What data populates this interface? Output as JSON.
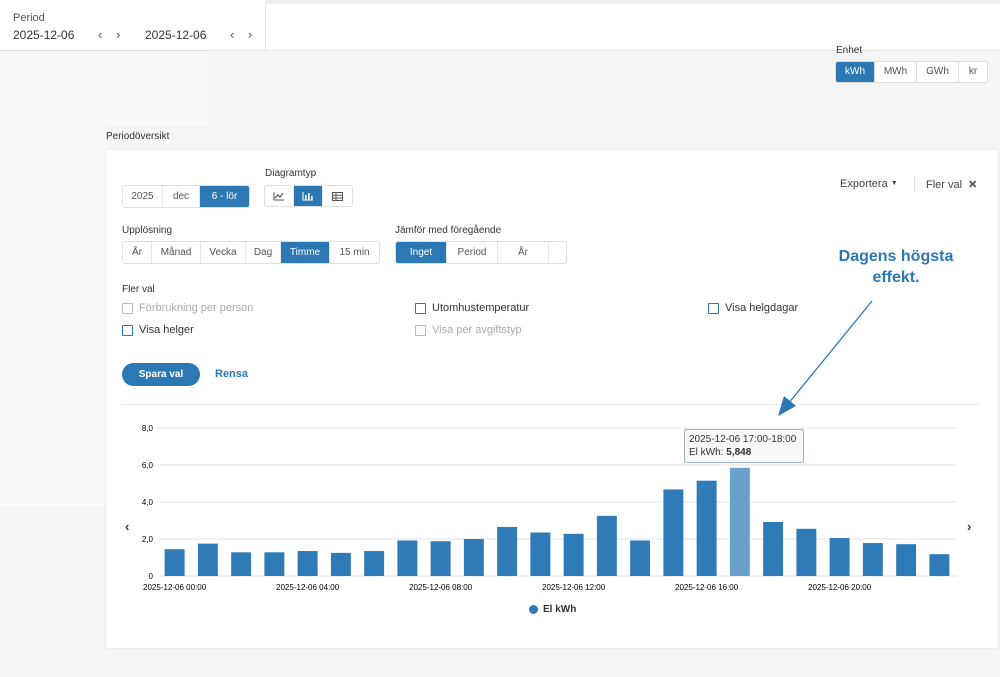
{
  "period": {
    "label": "Period",
    "start_date": "2025-12-06",
    "end_date": "2025-12-06"
  },
  "unit": {
    "label": "Enhet",
    "options": [
      "kWh",
      "MWh",
      "GWh",
      "kr"
    ],
    "selected": "kWh"
  },
  "section_title": "Periodöversikt",
  "date_picker": {
    "year": "2025",
    "month": "dec",
    "day": "6 - lör"
  },
  "diagram": {
    "label": "Diagramtyp",
    "options": [
      "line-chart-icon",
      "bar-chart-icon",
      "table-icon"
    ],
    "selected": "bar-chart-icon"
  },
  "toolbar": {
    "export_label": "Exportera",
    "more_label": "Fler val"
  },
  "resolution": {
    "label": "Upplösning",
    "options": [
      "År",
      "Månad",
      "Vecka",
      "Dag",
      "Timme",
      "15 min"
    ],
    "selected": "Timme"
  },
  "compare": {
    "label": "Jämför med föregående",
    "options": [
      "Inget",
      "Period",
      "År",
      ""
    ],
    "selected": "Inget"
  },
  "more_options": {
    "label": "Fler val",
    "checkboxes": [
      {
        "label": "Förbrukning per person",
        "checked": false,
        "disabled": true
      },
      {
        "label": "Utomhustemperatur",
        "checked": false,
        "disabled": false
      },
      {
        "label": "Visa helgdagar",
        "checked": false,
        "disabled": false
      },
      {
        "label": "Visa helger",
        "checked": false,
        "disabled": false
      },
      {
        "label": "Visa per avgiftstyp",
        "checked": false,
        "disabled": true
      }
    ]
  },
  "actions": {
    "save_label": "Spara val",
    "clear_label": "Rensa"
  },
  "annotation": {
    "line1": "Dagens högsta",
    "line2": "effekt."
  },
  "tooltip": {
    "time": "2025-12-06 17:00-18:00",
    "series_label": "El kWh:",
    "value": "5,848"
  },
  "colors": {
    "accent": "#2b78b5",
    "bar": "#2f7bb8",
    "bar_highlight": "#6aa1cc"
  },
  "chart_data": {
    "type": "bar",
    "ylim": [
      0,
      8
    ],
    "y_ticks": [
      "0",
      "2,0",
      "4,0",
      "6,0",
      "8,0"
    ],
    "x_tick_labels": [
      "2025-12-06 00:00",
      "2025-12-06 04:00",
      "2025-12-06 08:00",
      "2025-12-06 12:00",
      "2025-12-06 16:00",
      "2025-12-06 20:00"
    ],
    "x_tick_hours": [
      0,
      4,
      8,
      12,
      16,
      20
    ],
    "categories": [
      "00",
      "01",
      "02",
      "03",
      "04",
      "05",
      "06",
      "07",
      "08",
      "09",
      "10",
      "11",
      "12",
      "13",
      "14",
      "15",
      "16",
      "17",
      "18",
      "19",
      "20",
      "21",
      "22",
      "23"
    ],
    "series": [
      {
        "name": "El kWh",
        "values": [
          1.45,
          1.75,
          1.28,
          1.28,
          1.35,
          1.25,
          1.35,
          1.92,
          1.88,
          2.0,
          2.65,
          2.35,
          2.28,
          3.25,
          1.92,
          4.68,
          5.15,
          5.848,
          2.92,
          2.55,
          2.05,
          1.78,
          1.72,
          1.18
        ]
      }
    ],
    "highlight_index": 17,
    "legend": "bottom-center"
  }
}
